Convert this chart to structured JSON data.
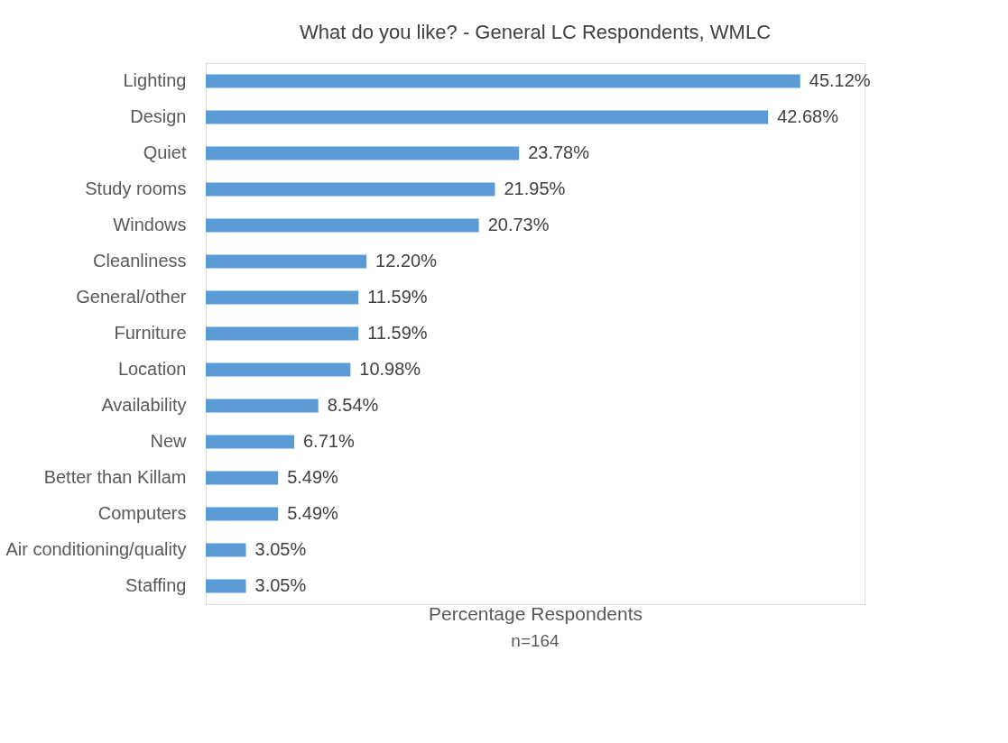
{
  "chart_data": {
    "type": "bar",
    "orientation": "horizontal",
    "title": "What do you like? - General LC Respondents, WMLC",
    "categories": [
      "Lighting",
      "Design",
      "Quiet",
      "Study rooms",
      "Windows",
      "Cleanliness",
      "General/other",
      "Furniture",
      "Location",
      "Availability",
      "New",
      "Better than Killam",
      "Computers",
      "Air conditioning/quality",
      "Staffing"
    ],
    "values": [
      45.12,
      42.68,
      23.78,
      21.95,
      20.73,
      12.2,
      11.59,
      11.59,
      10.98,
      8.54,
      6.71,
      5.49,
      5.49,
      3.05,
      3.05
    ],
    "value_labels": [
      "45.12%",
      "42.68%",
      "23.78%",
      "21.95%",
      "20.73%",
      "12.20%",
      "11.59%",
      "11.59%",
      "10.98%",
      "8.54%",
      "6.71%",
      "5.49%",
      "5.49%",
      "3.05%",
      "3.05%"
    ],
    "color": "#5b9bd5",
    "xlim": [
      0,
      50
    ],
    "xlabel": "Percentage Respondents",
    "annotations": [
      "n=164"
    ],
    "tick_labels": "y",
    "grid": false
  }
}
